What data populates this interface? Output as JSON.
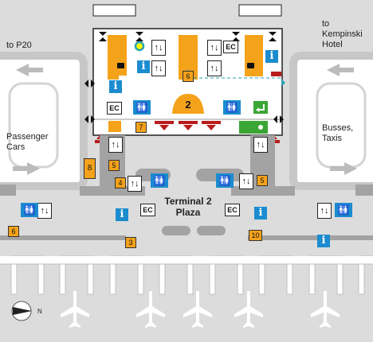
{
  "labels": {
    "to_p20": "to P20",
    "to_kempinski": "to\nKempinski\nHotel",
    "passenger_cars": "Passenger\nCars",
    "busses_taxis": "Busses,\nTaxis",
    "plaza": "Terminal 2\nPlaza",
    "north": "N"
  },
  "markers": {
    "n2": "2",
    "n3": "3",
    "n4": "4",
    "n5a": "5",
    "n5b": "5",
    "n6a": "6",
    "n6b": "6",
    "n7": "7",
    "n8": "8",
    "n10": "10"
  },
  "symbols": {
    "ec": "EC",
    "info": "i",
    "lift": "↑↓",
    "toilets": "🚻"
  },
  "colors": {
    "background": "#dcdcdc",
    "building": "#ffffff",
    "info_blue": "#1b8ccf",
    "marker_orange": "#f5a21b",
    "exit_green": "#3aa635",
    "gate_red": "#b81c1c",
    "teal_path": "#2a9fb0"
  }
}
